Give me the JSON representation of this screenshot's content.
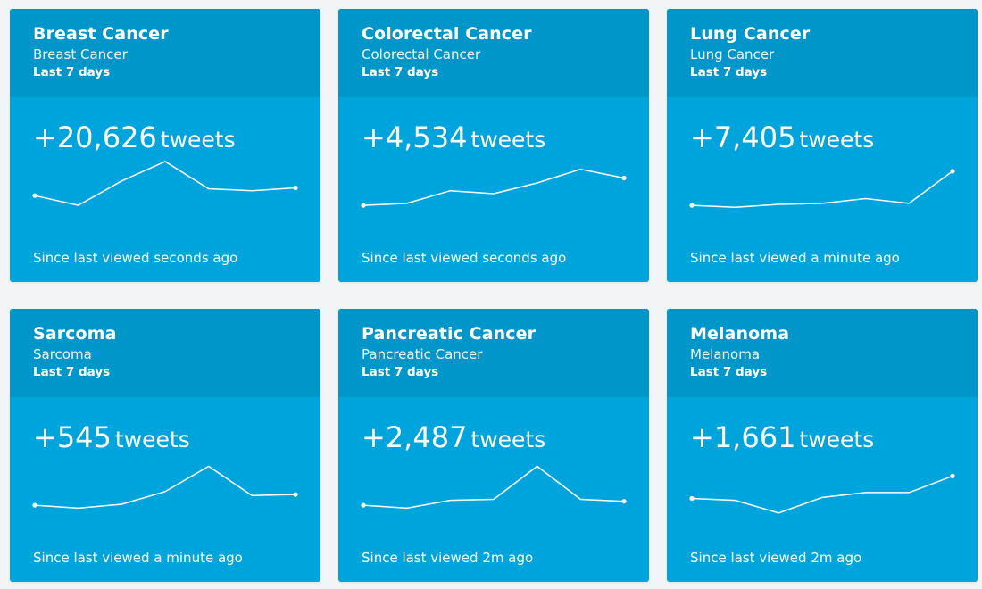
{
  "period_label": "Last 7 days",
  "count_unit": "tweets",
  "cards": [
    {
      "title": "Breast Cancer",
      "subtitle": "Breast Cancer",
      "count": "+20,626",
      "since": "Since last viewed seconds ago",
      "trend": [
        3.5,
        2.5,
        5.0,
        7.0,
        4.2,
        4.0,
        4.3
      ]
    },
    {
      "title": "Colorectal Cancer",
      "subtitle": "Colorectal Cancer",
      "count": "+4,534",
      "since": "Since last viewed seconds ago",
      "trend": [
        2.5,
        2.7,
        4.0,
        3.7,
        4.8,
        6.2,
        5.3
      ]
    },
    {
      "title": "Lung Cancer",
      "subtitle": "Lung Cancer",
      "count": "+7,405",
      "since": "Since last viewed a minute ago",
      "trend": [
        2.5,
        2.3,
        2.6,
        2.7,
        3.2,
        2.7,
        6.0
      ]
    },
    {
      "title": "Sarcoma",
      "subtitle": "Sarcoma",
      "count": "+545",
      "since": "Since last viewed a minute ago",
      "trend": [
        2.5,
        2.2,
        2.6,
        3.9,
        6.5,
        3.5,
        3.6
      ]
    },
    {
      "title": "Pancreatic Cancer",
      "subtitle": "Pancreatic Cancer",
      "count": "+2,487",
      "since": "Since last viewed 2m ago",
      "trend": [
        2.5,
        2.2,
        3.0,
        3.1,
        6.5,
        3.1,
        2.9
      ]
    },
    {
      "title": "Melanoma",
      "subtitle": "Melanoma",
      "count": "+1,661",
      "since": "Since last viewed 2m ago",
      "trend": [
        3.2,
        3.0,
        1.7,
        3.3,
        3.8,
        3.8,
        5.5
      ]
    }
  ]
}
